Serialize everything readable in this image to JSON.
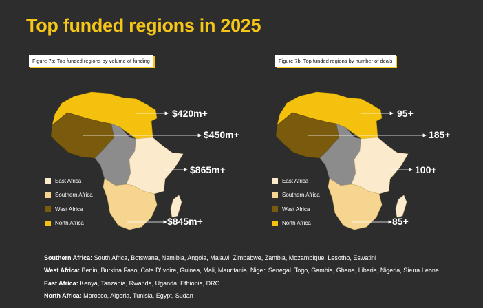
{
  "title": "Top funded regions in 2025",
  "figures": [
    {
      "label": "Figure 7a: Top funded regions  by volume of funding",
      "callouts": {
        "north": "$420m+",
        "west": "$450m+",
        "east": "$865m+",
        "southern": "$845m+"
      }
    },
    {
      "label": "Figure 7b: Top funded regions by number of deals",
      "callouts": {
        "north": "95+",
        "west": "185+",
        "east": "100+",
        "southern": "85+"
      }
    }
  ],
  "legend": {
    "east": "East Africa",
    "southern": "Southern Africa",
    "west": "West Africa",
    "north": "North Africa"
  },
  "colors": {
    "background": "#2d2d2d",
    "accent": "#f5c518",
    "north": "#f5c10f",
    "west": "#7a5a0c",
    "central": "#8c8c8c",
    "east": "#fbeacb",
    "southern": "#f5d590",
    "madagascar": "#fbeacb"
  },
  "footer": [
    {
      "region": "Southern Africa:",
      "countries": " South Africa, Botswana, Namibia, Angola, Malawi, Zimbabwe, Zambia, Mozambique, Lesotho, Eswatini"
    },
    {
      "region": "West Africa:",
      "countries": " Benin, Burkina Faso, Cote D'Ivoire, Guinea, Mali, Mauritania, Niger, Senegal, Togo, Gambia, Ghana, Liberia, Nigeria, Sierra Leone"
    },
    {
      "region": "East Africa:",
      "countries": " Kenya, Tanzania, Rwanda, Uganda, Ethiopia, DRC"
    },
    {
      "region": "North Africa:",
      "countries": " Morocco, Algeria, Tunisia, Egypt, Sudan"
    }
  ]
}
